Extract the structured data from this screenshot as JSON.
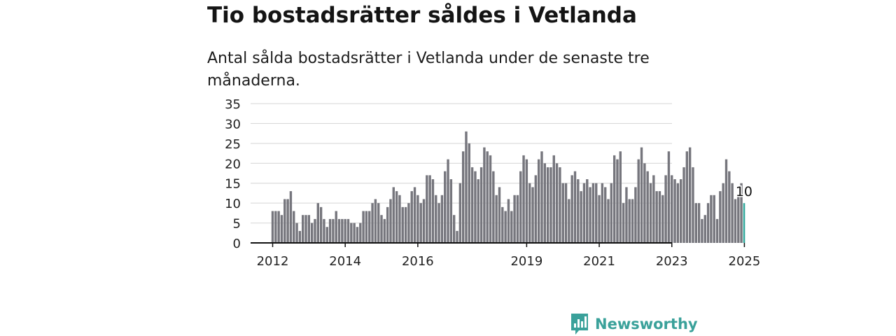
{
  "title": "Tio bostadsrätter såldes i Vetlanda",
  "subtitle": "Antal sålda bostadsrätter i Vetlanda under de senaste tre månaderna.",
  "brand": {
    "name": "Newsworthy",
    "icon": "newsworthy-logo-icon",
    "color": "#3aa19a"
  },
  "chart_data": {
    "type": "bar",
    "title": "Tio bostadsrätter såldes i Vetlanda",
    "xlabel": "",
    "ylabel": "",
    "ylim": [
      0,
      35
    ],
    "yticks": [
      0,
      5,
      10,
      15,
      20,
      25,
      30,
      35
    ],
    "xticks": [
      "2012",
      "2014",
      "2016",
      "2019",
      "2021",
      "2023",
      "2025"
    ],
    "grid": true,
    "colors": {
      "bar": "#76767d",
      "highlight": "#33a89c",
      "axis": "#111111",
      "grid": "#d4d4d4"
    },
    "highlight_label": "10",
    "x": [
      "2012-01",
      "2012-02",
      "2012-03",
      "2012-04",
      "2012-05",
      "2012-06",
      "2012-07",
      "2012-08",
      "2012-09",
      "2012-10",
      "2012-11",
      "2012-12",
      "2013-01",
      "2013-02",
      "2013-03",
      "2013-04",
      "2013-05",
      "2013-06",
      "2013-07",
      "2013-08",
      "2013-09",
      "2013-10",
      "2013-11",
      "2013-12",
      "2014-01",
      "2014-02",
      "2014-03",
      "2014-04",
      "2014-05",
      "2014-06",
      "2014-07",
      "2014-08",
      "2014-09",
      "2014-10",
      "2014-11",
      "2014-12",
      "2015-01",
      "2015-02",
      "2015-03",
      "2015-04",
      "2015-05",
      "2015-06",
      "2015-07",
      "2015-08",
      "2015-09",
      "2015-10",
      "2015-11",
      "2015-12",
      "2016-01",
      "2016-02",
      "2016-03",
      "2016-04",
      "2016-05",
      "2016-06",
      "2016-07",
      "2016-08",
      "2016-09",
      "2016-10",
      "2016-11",
      "2016-12",
      "2017-01",
      "2017-02",
      "2017-03",
      "2017-04",
      "2017-05",
      "2017-06",
      "2017-07",
      "2017-08",
      "2017-09",
      "2017-10",
      "2017-11",
      "2017-12",
      "2018-01",
      "2018-02",
      "2018-03",
      "2018-04",
      "2018-05",
      "2018-06",
      "2018-07",
      "2018-08",
      "2018-09",
      "2018-10",
      "2018-11",
      "2018-12",
      "2019-01",
      "2019-02",
      "2019-03",
      "2019-04",
      "2019-05",
      "2019-06",
      "2019-07",
      "2019-08",
      "2019-09",
      "2019-10",
      "2019-11",
      "2019-12",
      "2020-01",
      "2020-02",
      "2020-03",
      "2020-04",
      "2020-05",
      "2020-06",
      "2020-07",
      "2020-08",
      "2020-09",
      "2020-10",
      "2020-11",
      "2020-12",
      "2021-01",
      "2021-02",
      "2021-03",
      "2021-04",
      "2021-05",
      "2021-06",
      "2021-07",
      "2021-08",
      "2021-09",
      "2021-10",
      "2021-11",
      "2021-12",
      "2022-01",
      "2022-02",
      "2022-03",
      "2022-04",
      "2022-05",
      "2022-06",
      "2022-07",
      "2022-08",
      "2022-09",
      "2022-10",
      "2022-11",
      "2022-12",
      "2023-01",
      "2023-02",
      "2023-03",
      "2023-04",
      "2023-05",
      "2023-06",
      "2023-07",
      "2023-08",
      "2023-09",
      "2023-10",
      "2023-11",
      "2023-12",
      "2024-01",
      "2024-02",
      "2024-03",
      "2024-04",
      "2024-05",
      "2024-06",
      "2024-07",
      "2024-08",
      "2024-09",
      "2024-10",
      "2024-11",
      "2024-12",
      "2025-01"
    ],
    "values": [
      8,
      8,
      8,
      7,
      11,
      11,
      13,
      8,
      5,
      3,
      7,
      7,
      7,
      5,
      6,
      10,
      9,
      6,
      4,
      6,
      6,
      8,
      6,
      6,
      6,
      6,
      5,
      5,
      4,
      5,
      8,
      8,
      8,
      10,
      11,
      10,
      7,
      6,
      9,
      11,
      14,
      13,
      12,
      9,
      9,
      10,
      13,
      14,
      12,
      10,
      11,
      17,
      17,
      16,
      12,
      10,
      12,
      18,
      21,
      16,
      7,
      3,
      15,
      23,
      28,
      25,
      19,
      18,
      16,
      19,
      24,
      23,
      22,
      18,
      12,
      14,
      9,
      8,
      11,
      8,
      12,
      12,
      18,
      22,
      21,
      15,
      14,
      17,
      21,
      23,
      20,
      19,
      19,
      22,
      20,
      19,
      15,
      15,
      11,
      17,
      18,
      16,
      13,
      15,
      16,
      14,
      15,
      15,
      12,
      15,
      14,
      11,
      15,
      22,
      21,
      23,
      10,
      14,
      11,
      11,
      14,
      21,
      24,
      20,
      18,
      15,
      17,
      13,
      13,
      12,
      17,
      23,
      17,
      16,
      15,
      16,
      19,
      23,
      24,
      19,
      10,
      10,
      6,
      7,
      10,
      12,
      12,
      6,
      13,
      15,
      21,
      18,
      15,
      11,
      12,
      15,
      10
    ]
  }
}
